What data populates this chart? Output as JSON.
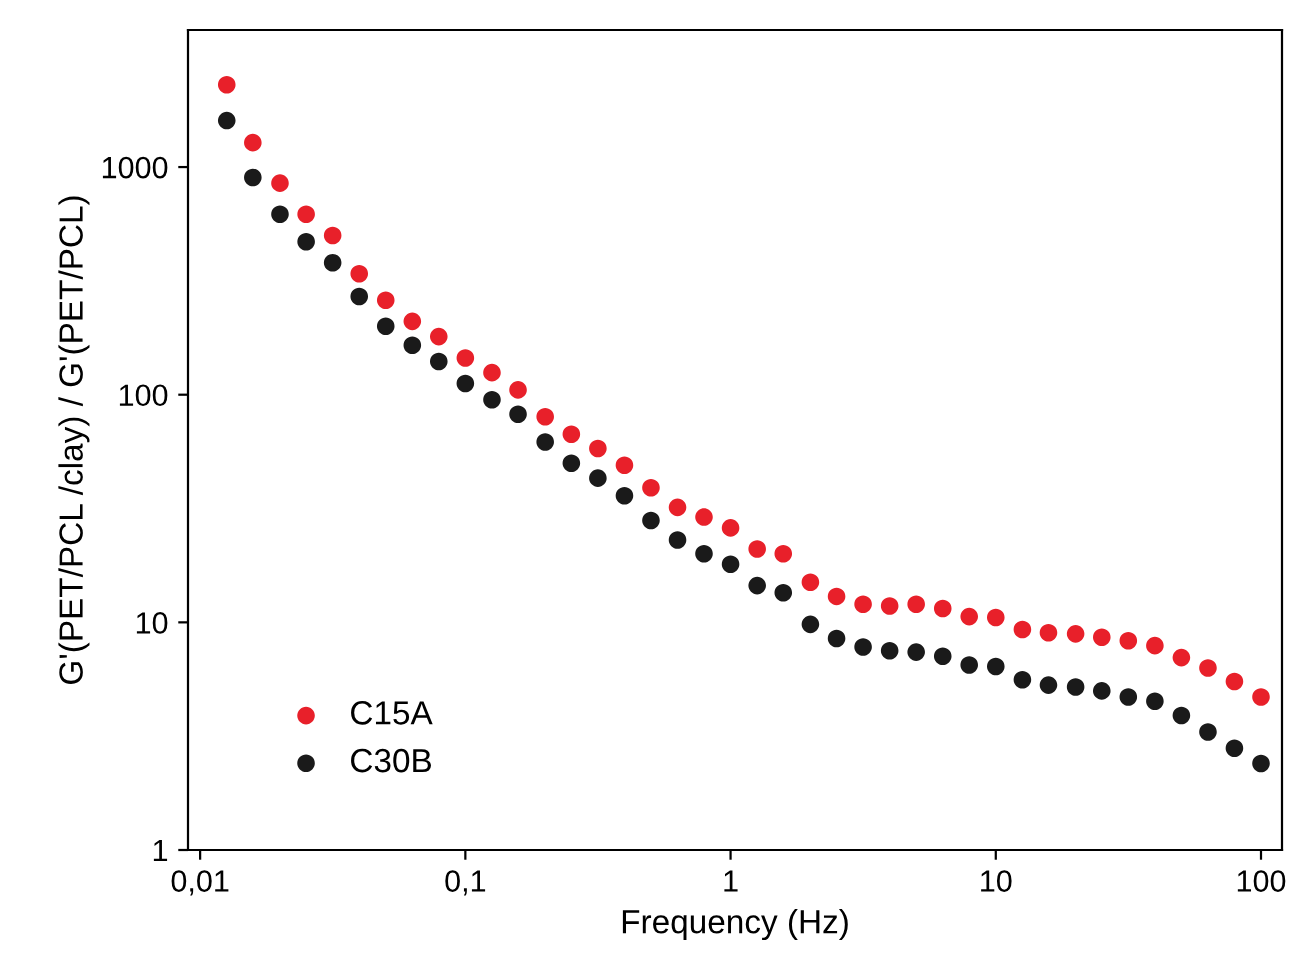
{
  "chart_data": {
    "type": "scatter",
    "xlabel": "Frequency (Hz)",
    "ylabel": "G'(PET/PCL /clay) / G'(PET/PCL)",
    "log": "xy",
    "marker": "circle",
    "grid": false,
    "legend": "bottom left",
    "x": [
      0.0126,
      0.0158,
      0.02,
      0.0251,
      0.0316,
      0.0398,
      0.0501,
      0.0631,
      0.0794,
      0.1,
      0.126,
      0.158,
      0.2,
      0.251,
      0.316,
      0.398,
      0.501,
      0.631,
      0.794,
      1,
      1.26,
      1.58,
      2,
      2.51,
      3.16,
      3.98,
      5.01,
      6.31,
      7.94,
      10,
      12.6,
      15.8,
      20,
      25.1,
      31.6,
      39.8,
      50.1,
      63.1,
      79.4,
      100
    ],
    "xlim": [
      0.009,
      120
    ],
    "xticks": [
      {
        "value": 0.01,
        "label": "0,01"
      },
      {
        "value": 0.1,
        "label": "0,1"
      },
      1,
      10,
      100
    ],
    "ylim": [
      1,
      4000
    ],
    "yticks": [
      1,
      10,
      100,
      1000
    ],
    "series": [
      {
        "name": "C15A",
        "color": "#e8202a",
        "values": [
          2300,
          1280,
          850,
          620,
          500,
          340,
          260,
          210,
          180,
          145,
          125,
          105,
          80,
          67,
          58,
          49,
          39,
          32,
          29,
          26,
          21,
          20,
          15,
          13,
          12,
          11.8,
          12,
          11.5,
          10.6,
          10.5,
          9.3,
          9.0,
          8.9,
          8.6,
          8.3,
          7.9,
          7.0,
          6.3,
          5.5,
          4.7
        ]
      },
      {
        "name": "C30B",
        "color": "#1a1a1a",
        "values": [
          1600,
          900,
          620,
          470,
          380,
          270,
          200,
          165,
          140,
          112,
          95,
          82,
          62,
          50,
          43,
          36,
          28,
          23,
          20,
          18,
          14.5,
          13.5,
          9.8,
          8.5,
          7.8,
          7.5,
          7.4,
          7.1,
          6.5,
          6.4,
          5.6,
          5.3,
          5.2,
          5.0,
          4.7,
          4.5,
          3.9,
          3.3,
          2.8,
          2.4
        ]
      }
    ]
  }
}
